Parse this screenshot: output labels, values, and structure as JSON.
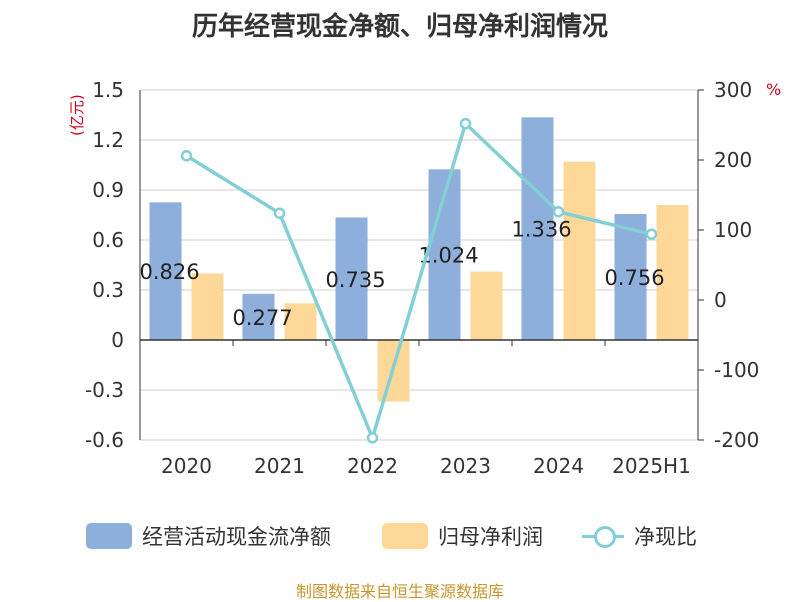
{
  "chart_data": {
    "type": "bar",
    "title": "历年经营现金净额、归母净利润情况",
    "left_unit": "(亿元)",
    "right_unit": "%",
    "categories": [
      "2020",
      "2021",
      "2022",
      "2023",
      "2024",
      "2025H1"
    ],
    "series": [
      {
        "name": "经营活动现金流净额",
        "type": "bar",
        "axis": "left",
        "color": "#8eaedb",
        "values": [
          0.826,
          0.277,
          0.735,
          1.024,
          1.336,
          0.756
        ]
      },
      {
        "name": "归母净利润",
        "type": "bar",
        "axis": "left",
        "color": "#fdd898",
        "values": [
          0.4,
          0.22,
          -0.37,
          0.41,
          1.07,
          0.81
        ]
      },
      {
        "name": "净现比",
        "type": "line",
        "axis": "right",
        "color": "#82cfd6",
        "values": [
          206,
          124,
          -197,
          252,
          126,
          94
        ]
      }
    ],
    "data_labels": [
      "0.826",
      "0.277",
      "0.735",
      "1.024",
      "1.336",
      "0.756"
    ],
    "left_axis": {
      "ylim": [
        -0.6,
        1.5
      ],
      "ticks": [
        "-0.6",
        "-0.3",
        "0",
        "0.3",
        "0.6",
        "0.9",
        "1.2",
        "1.5"
      ],
      "tick_values": [
        -0.6,
        -0.3,
        0,
        0.3,
        0.6,
        0.9,
        1.2,
        1.5
      ]
    },
    "right_axis": {
      "ylim": [
        -200,
        300
      ],
      "ticks": [
        "-200",
        "-100",
        "0",
        "100",
        "200",
        "300"
      ],
      "tick_values": [
        -200,
        -100,
        0,
        100,
        200,
        300
      ]
    },
    "grid": true,
    "legend_position": "bottom"
  },
  "source": "制图数据来自恒生聚源数据库"
}
